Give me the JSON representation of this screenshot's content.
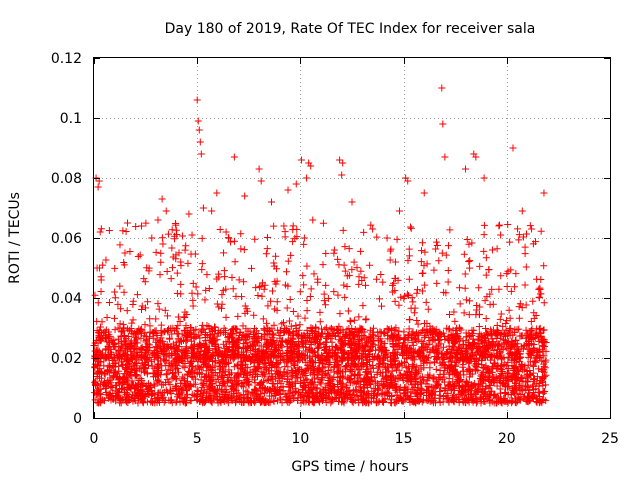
{
  "chart_data": {
    "type": "scatter",
    "title": "Day 180 of 2019, Rate Of TEC Index for receiver sala",
    "xlabel": "GPS time / hours",
    "ylabel": "ROTI / TECUs",
    "xlim": [
      0,
      25
    ],
    "ylim": [
      0,
      0.12
    ],
    "grid": true,
    "x_ticks": [
      0,
      5,
      10,
      15,
      20,
      25
    ],
    "x_tick_labels": [
      "0",
      "5",
      "10",
      "15",
      "20",
      "25"
    ],
    "y_ticks": [
      0,
      0.02,
      0.04,
      0.06,
      0.08,
      0.1,
      0.12
    ],
    "y_tick_labels": [
      "0",
      "0.02",
      "0.04",
      "0.06",
      "0.08",
      "0.1",
      "0.12"
    ],
    "marker": "+",
    "marker_color": "#ff0000",
    "data_x_range_hours": [
      0,
      21.9
    ],
    "bulk_range": [
      0.005,
      0.03
    ],
    "series": [
      {
        "name": "ROTI",
        "x": [
          0.1,
          0.2,
          0.25,
          0.3,
          0.35,
          0.15,
          1.0,
          1.5,
          2.3,
          2.8,
          3.1,
          3.3,
          3.5,
          4.2,
          4.6,
          4.75,
          5.0,
          5.05,
          5.1,
          5.15,
          5.2,
          5.3,
          5.7,
          5.95,
          6.4,
          6.8,
          7.3,
          8.0,
          8.1,
          8.6,
          9.2,
          9.4,
          9.8,
          10.05,
          10.3,
          10.4,
          10.5,
          10.6,
          11.9,
          12.0,
          12.05,
          12.5,
          13.5,
          14.2,
          14.8,
          15.1,
          15.2,
          16.0,
          16.85,
          16.9,
          17.0,
          18.0,
          18.4,
          18.5,
          18.9,
          19.7,
          20.3,
          20.75,
          21.2,
          21.8
        ],
        "y": [
          0.08,
          0.077,
          0.079,
          0.062,
          0.046,
          0.05,
          0.042,
          0.055,
          0.064,
          0.06,
          0.066,
          0.073,
          0.069,
          0.052,
          0.068,
          0.061,
          0.106,
          0.099,
          0.096,
          0.092,
          0.088,
          0.07,
          0.069,
          0.075,
          0.062,
          0.087,
          0.074,
          0.083,
          0.079,
          0.072,
          0.064,
          0.076,
          0.078,
          0.086,
          0.08,
          0.085,
          0.084,
          0.066,
          0.086,
          0.081,
          0.085,
          0.072,
          0.063,
          0.06,
          0.069,
          0.08,
          0.079,
          0.075,
          0.11,
          0.098,
          0.087,
          0.083,
          0.088,
          0.087,
          0.08,
          0.061,
          0.09,
          0.069,
          0.063,
          0.075
        ]
      }
    ]
  }
}
